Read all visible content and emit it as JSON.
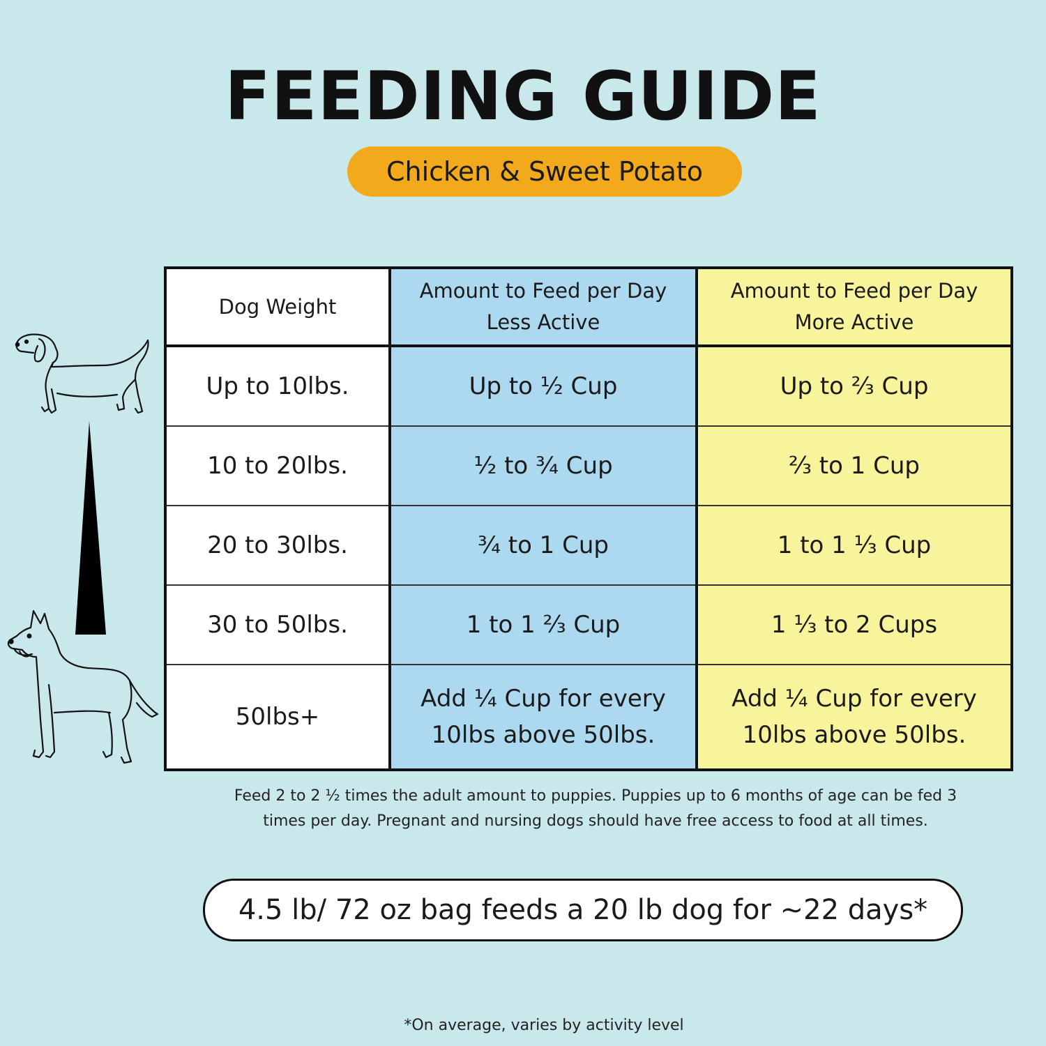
{
  "title": "FEEDING GUIDE",
  "flavor": "Chicken & Sweet Potato",
  "table": {
    "headers": [
      {
        "line1": "Dog Weight",
        "line2": ""
      },
      {
        "line1": "Amount to Feed per Day",
        "line2": "Less Active"
      },
      {
        "line1": "Amount to Feed per Day",
        "line2": "More Active"
      }
    ],
    "rows": [
      {
        "weight": "Up to 10lbs.",
        "less": "Up to ½ Cup",
        "more": "Up to ⅔ Cup"
      },
      {
        "weight": "10 to 20lbs.",
        "less": "½ to ¾ Cup",
        "more": "⅔ to 1 Cup"
      },
      {
        "weight": "20 to 30lbs.",
        "less": "¾ to 1 Cup",
        "more": "1 to 1 ⅓ Cup"
      },
      {
        "weight": "30 to 50lbs.",
        "less": "1 to 1 ⅔ Cup",
        "more": "1 ⅓ to 2 Cups"
      },
      {
        "weight": "50lbs+",
        "less_line1": "Add ¼ Cup for every",
        "less_line2": "10lbs above 50lbs.",
        "more_line1": "Add ¼ Cup for every",
        "more_line2": "10lbs above 50lbs."
      }
    ]
  },
  "note": {
    "line1": "Feed 2 to 2 ½ times the adult amount to puppies. Puppies up to 6 months of age can be fed 3",
    "line2": "times per day. Pregnant and nursing dogs should have free access to food at all times."
  },
  "bag_text": "4.5 lb/ 72 oz bag feeds a 20 lb dog for ~22 days*",
  "footnote": "*On average, varies by activity level",
  "icons": [
    "small-dog-icon",
    "large-dog-icon",
    "size-wedge-icon"
  ],
  "colors": {
    "background": "#c9e8ec",
    "pill": "#f2aa1c",
    "less_active": "#acd9f0",
    "more_active": "#f7f49b"
  }
}
